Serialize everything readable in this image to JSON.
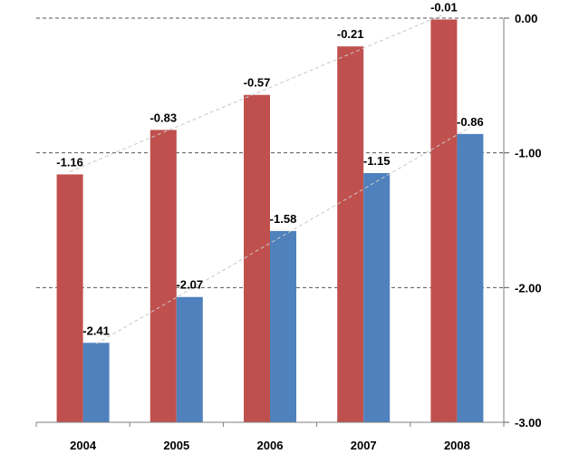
{
  "chart_data": {
    "type": "bar",
    "categories": [
      "2004",
      "2005",
      "2006",
      "2007",
      "2008"
    ],
    "series": [
      {
        "values": [
          -1.16,
          -0.83,
          -0.57,
          -0.21,
          -0.01
        ],
        "color": "#C0504D",
        "value_labels": [
          "-1.16",
          "-0.83",
          "-0.57",
          "-0.21",
          "-0.01"
        ]
      },
      {
        "values": [
          -2.41,
          -2.07,
          -1.58,
          -1.15,
          -0.86
        ],
        "color": "#4F81BD",
        "value_labels": [
          "-2.41",
          "-2.07",
          "-1.58",
          "-1.15",
          "-0.86"
        ]
      }
    ],
    "y_axis": {
      "position": "right",
      "ylim": [
        -3.0,
        0.0
      ],
      "ticks": [
        0.0,
        -1.0,
        -2.0,
        -3.0
      ],
      "tick_labels": [
        "0.00",
        "-1.00",
        "-2.00",
        "-3.00"
      ]
    },
    "bars_extend_from": -3.0,
    "gridlines": "dashed",
    "trendlines": "dashed, linear, one per series",
    "xlabel": "",
    "ylabel": "",
    "title": "",
    "legend": "none"
  }
}
